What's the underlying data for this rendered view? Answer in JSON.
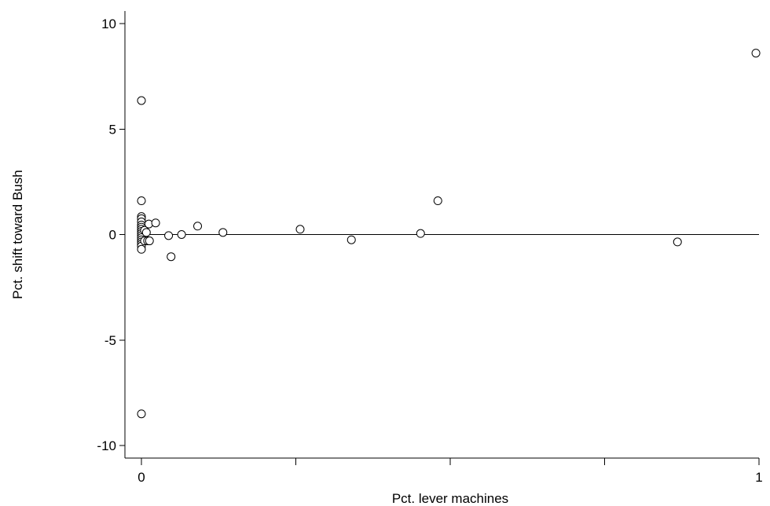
{
  "chart_data": {
    "type": "scatter",
    "title": "",
    "xlabel": "Pct. lever machines",
    "ylabel": "Pct. shift toward Bush",
    "xlim": [
      0,
      1
    ],
    "ylim": [
      -10.5,
      10.5
    ],
    "xticks": [
      0,
      0.25,
      0.5,
      0.75,
      1
    ],
    "xtick_labels": [
      "0",
      "",
      "",
      "",
      "1"
    ],
    "yticks": [
      10,
      5,
      0,
      -5,
      -10
    ],
    "ytick_labels": [
      "10",
      "5",
      "0",
      "-5",
      "-10"
    ],
    "reference_line_y": 0,
    "grid": false,
    "points": [
      {
        "x": 0.0,
        "y": 6.35
      },
      {
        "x": 0.0,
        "y": 1.6
      },
      {
        "x": 0.0,
        "y": 0.85
      },
      {
        "x": 0.0,
        "y": 0.75
      },
      {
        "x": 0.0,
        "y": 0.6
      },
      {
        "x": 0.0,
        "y": 0.45
      },
      {
        "x": 0.0,
        "y": 0.35
      },
      {
        "x": 0.0,
        "y": 0.25
      },
      {
        "x": 0.0,
        "y": 0.15
      },
      {
        "x": 0.0,
        "y": 0.05
      },
      {
        "x": 0.0,
        "y": -0.05
      },
      {
        "x": 0.0,
        "y": -0.15
      },
      {
        "x": 0.0,
        "y": -0.25
      },
      {
        "x": 0.0,
        "y": -0.35
      },
      {
        "x": 0.0,
        "y": -0.45
      },
      {
        "x": 0.0,
        "y": -0.55
      },
      {
        "x": 0.0,
        "y": -0.7
      },
      {
        "x": 0.0,
        "y": -8.5
      },
      {
        "x": 0.005,
        "y": 0.2
      },
      {
        "x": 0.005,
        "y": -0.3
      },
      {
        "x": 0.008,
        "y": 0.1
      },
      {
        "x": 0.01,
        "y": -0.3
      },
      {
        "x": 0.012,
        "y": 0.5
      },
      {
        "x": 0.013,
        "y": -0.3
      },
      {
        "x": 0.023,
        "y": 0.55
      },
      {
        "x": 0.044,
        "y": -0.05
      },
      {
        "x": 0.048,
        "y": -1.05
      },
      {
        "x": 0.065,
        "y": 0.0
      },
      {
        "x": 0.091,
        "y": 0.4
      },
      {
        "x": 0.132,
        "y": 0.1
      },
      {
        "x": 0.257,
        "y": 0.25
      },
      {
        "x": 0.34,
        "y": -0.25
      },
      {
        "x": 0.452,
        "y": 0.05
      },
      {
        "x": 0.48,
        "y": 1.6
      },
      {
        "x": 0.868,
        "y": -0.35
      },
      {
        "x": 0.995,
        "y": 8.6
      }
    ]
  }
}
